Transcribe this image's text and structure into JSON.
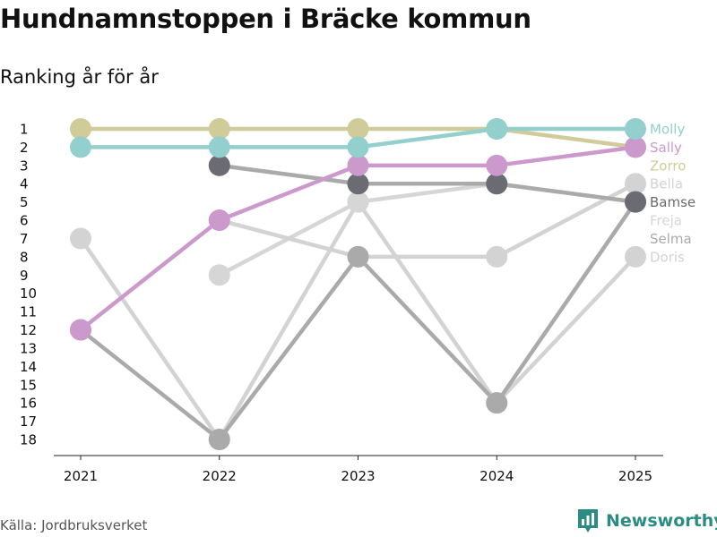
{
  "header": {
    "title": "Hundnamnstoppen i Bräcke kommun",
    "subtitle": "Ranking år för år"
  },
  "footer": {
    "source": "Källa: Jordbruksverket",
    "brand": "Newsworthy"
  },
  "colors": {
    "molly": "#92cfcd",
    "sally": "#cc99cc",
    "zorro": "#cfcc99",
    "bella": "#d3d3d3",
    "bamse": "#6b6b73",
    "bamse_line": "#aaaaaa",
    "freja": "#d6d6d6",
    "selma": "#aaaaaa",
    "doris": "#d3d3d3",
    "brand": "#2a8c82"
  },
  "chart_data": {
    "type": "line",
    "title": "Hundnamnstoppen i Bräcke kommun",
    "subtitle": "Ranking år för år",
    "x": [
      2021,
      2022,
      2023,
      2024,
      2025
    ],
    "y_ticks": [
      1,
      2,
      3,
      4,
      5,
      6,
      7,
      8,
      9,
      10,
      11,
      12,
      13,
      14,
      15,
      16,
      17,
      18
    ],
    "y_range": [
      1,
      18
    ],
    "y_inverted": true,
    "grid": false,
    "legend": "end-labels-right",
    "series": [
      {
        "name": "Doris",
        "values": [
          7,
          18,
          5,
          16,
          8
        ],
        "color": "#d3d3d3"
      },
      {
        "name": "Freja",
        "values": [
          null,
          9,
          5,
          4,
          5
        ],
        "color": "#d6d6d6"
      },
      {
        "name": "Bella",
        "values": [
          null,
          6,
          8,
          8,
          4
        ],
        "color": "#d3d3d3"
      },
      {
        "name": "Selma",
        "values": [
          12,
          18,
          8,
          16,
          5
        ],
        "color": "#aaaaaa"
      },
      {
        "name": "Bamse",
        "values": [
          null,
          3,
          4,
          4,
          5
        ],
        "color": "#6b6b73",
        "line_color": "#aaaaaa"
      },
      {
        "name": "Zorro",
        "values": [
          1,
          1,
          1,
          1,
          2
        ],
        "color": "#cfcc99"
      },
      {
        "name": "Sally",
        "values": [
          12,
          6,
          3,
          3,
          2
        ],
        "color": "#cc99cc"
      },
      {
        "name": "Molly",
        "values": [
          2,
          2,
          2,
          1,
          1
        ],
        "color": "#92cfcd"
      }
    ],
    "end_labels": [
      "Molly",
      "Sally",
      "Zorro",
      "Bella",
      "Bamse",
      "Freja",
      "Selma",
      "Doris"
    ]
  }
}
